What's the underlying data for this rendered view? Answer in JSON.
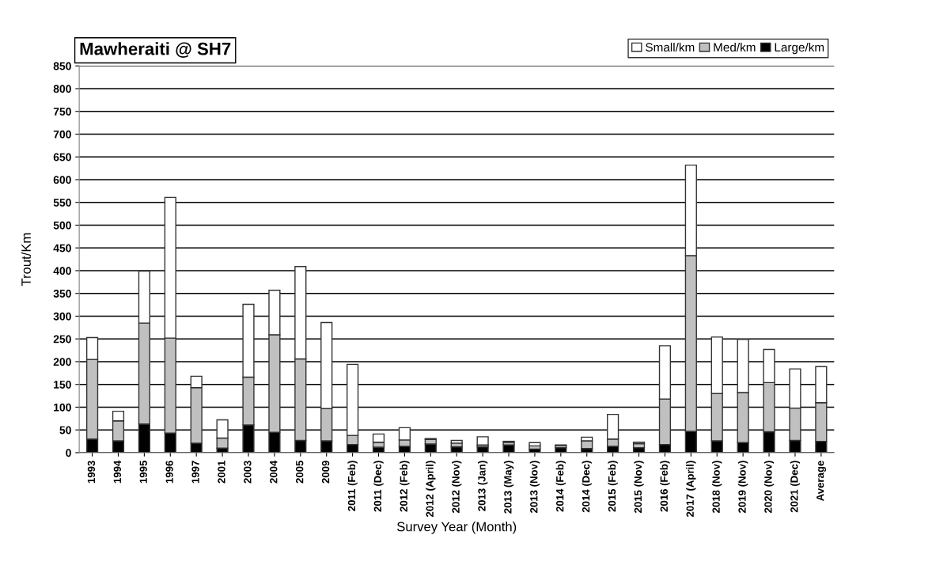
{
  "chart_data": {
    "type": "bar",
    "title": "Mawheraiti @ SH7",
    "xlabel": "Survey Year (Month)",
    "ylabel": "Trout/Km",
    "categories": [
      "1993",
      "1994",
      "1995",
      "1996",
      "1997",
      "2001",
      "2003",
      "2004",
      "2005",
      "2009",
      "2011 (Feb)",
      "2011 (Dec)",
      "2012 (Feb)",
      "2012 (April)",
      "2012 (Nov)",
      "2013 (Jan)",
      "2013 (May)",
      "2013 (Nov)",
      "2014 (Feb)",
      "2014 (Dec)",
      "2015 (Feb)",
      "2015 (Nov)",
      "2016 (Feb)",
      "2017 (April)",
      "2018 (Nov)",
      "2019 (Nov)",
      "2020 (Nov)",
      "2021 (Dec)",
      "Average"
    ],
    "stacked": true,
    "series": [
      {
        "name": "Large/km",
        "color": "#000000",
        "values": [
          30,
          26,
          63,
          43,
          21,
          10,
          61,
          45,
          27,
          26,
          18,
          12,
          14,
          19,
          13,
          13,
          17,
          8,
          11,
          9,
          14,
          11,
          18,
          47,
          26,
          22,
          46,
          27,
          25
        ]
      },
      {
        "name": "Med/km",
        "color": "#c0c0c0",
        "values": [
          175,
          44,
          222,
          209,
          122,
          22,
          105,
          214,
          179,
          71,
          20,
          11,
          14,
          10,
          8,
          4,
          6,
          7,
          5,
          17,
          16,
          9,
          100,
          386,
          104,
          110,
          108,
          71,
          85
        ]
      },
      {
        "name": "Small/km",
        "color": "#ffffff",
        "values": [
          48,
          21,
          114,
          309,
          25,
          40,
          160,
          98,
          203,
          189,
          156,
          18,
          27,
          2,
          6,
          18,
          2,
          7,
          1,
          8,
          54,
          3,
          117,
          199,
          124,
          117,
          73,
          86,
          79
        ]
      }
    ],
    "ylim": [
      0,
      850
    ],
    "yticks": [
      0,
      50,
      100,
      150,
      200,
      250,
      300,
      350,
      400,
      450,
      500,
      550,
      600,
      650,
      700,
      750,
      800,
      850
    ],
    "grid": "y",
    "legend": "top right"
  }
}
